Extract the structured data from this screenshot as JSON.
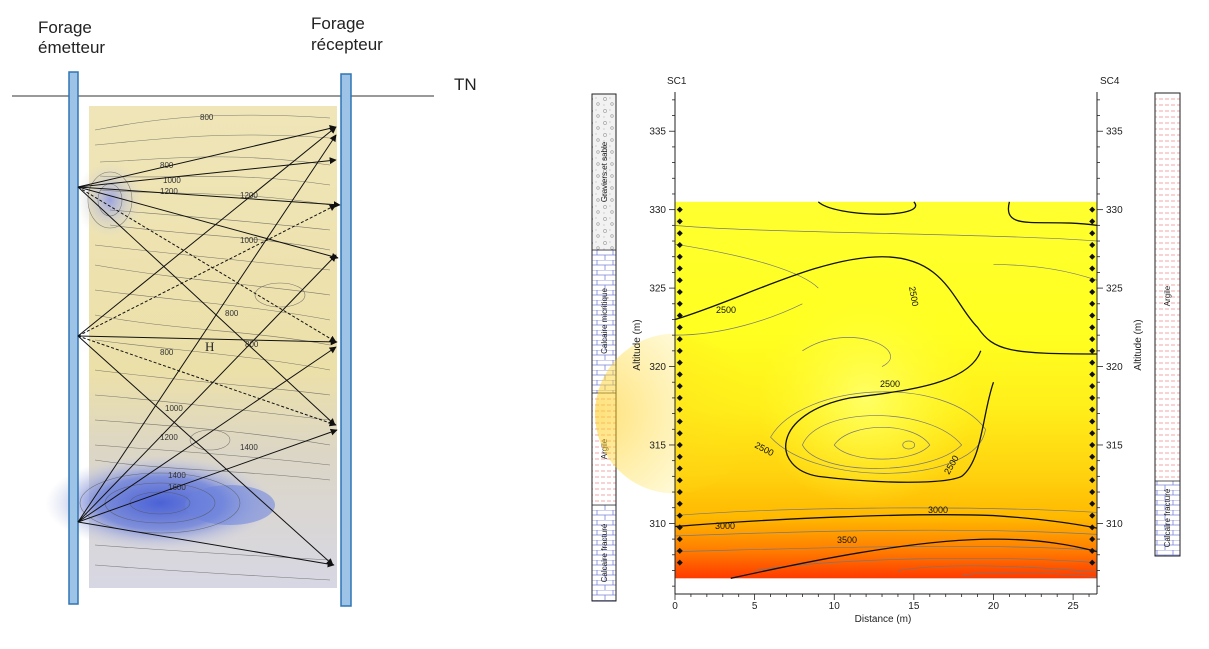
{
  "left_diagram": {
    "emitter_label_line1": "Forage",
    "emitter_label_line2": "émetteur",
    "receiver_label_line1": "Forage",
    "receiver_label_line2": "récepteur",
    "ground_label": "TN",
    "anomaly_label": "H",
    "contour_labels": [
      "800",
      "800",
      "1000",
      "1200",
      "1200",
      "1000",
      "800",
      "800",
      "800",
      "1000",
      "1200",
      "1400",
      "1400",
      "1600"
    ]
  },
  "right_chart": {
    "left_borehole": "SC1",
    "right_borehole": "SC4",
    "xlabel": "Distance (m)",
    "ylabel": "Altitude (m)",
    "x_ticks": [
      "0",
      "5",
      "10",
      "15",
      "20",
      "25"
    ],
    "y_ticks": [
      "335",
      "330",
      "325",
      "320",
      "315",
      "310"
    ],
    "contour_labels": [
      "2500",
      "2500",
      "2500",
      "2500",
      "2500",
      "3000",
      "3000",
      "3500"
    ],
    "left_log_units": [
      "Graviers et sable",
      "Calcaire micritique",
      "Argile",
      "Calcaire fracturé"
    ],
    "right_log_units": [
      "Argile",
      "Calcaire fracturé"
    ]
  },
  "chart_data": {
    "type": "heatmap",
    "title": "",
    "xlabel": "Distance (m)",
    "ylabel": "Altitude (m)",
    "xlim": [
      0,
      26.5
    ],
    "ylim": [
      305.5,
      337.5
    ],
    "x_ticks": [
      0,
      5,
      10,
      15,
      20,
      25
    ],
    "y_ticks": [
      310,
      315,
      320,
      325,
      330,
      335
    ],
    "data_extent": {
      "x": [
        0,
        26.5
      ],
      "y": [
        306.5,
        330.5
      ]
    },
    "contour_levels_labeled": [
      2500,
      3000,
      3500
    ],
    "sensor_x_positions": [
      0.3,
      26.2
    ],
    "sensor_altitudes": [
      330,
      329.25,
      328.5,
      327.75,
      327,
      326.25,
      325.5,
      324.75,
      324,
      323.25,
      322.5,
      321.75,
      321,
      320.25,
      319.5,
      318.75,
      318,
      317.25,
      316.5,
      315.75,
      315,
      314.25,
      313.5,
      312.75,
      312,
      311.25,
      310.5,
      309.75,
      309,
      308.25,
      307.5
    ]
  },
  "colors": {
    "borehole_fill": "#9dc3e6",
    "borehole_stroke": "#2e75b6",
    "low_velocity": "#ffff33",
    "mid_velocity": "#ffcc00",
    "high_velocity": "#ff3300"
  }
}
